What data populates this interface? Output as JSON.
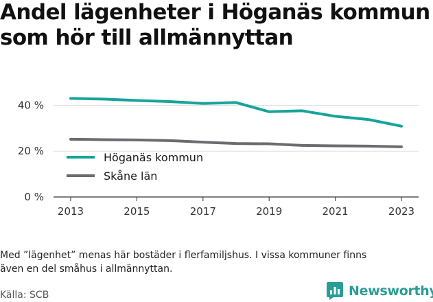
{
  "header": {
    "title_line1": "Andel lägenheter i Höganäs kommun",
    "title_line2": "som hör till allmännyttan"
  },
  "footer": {
    "note_line1": "Med ”lägenhet” menas här bostäder i flerfamiljshus. I vissa kommuner finns",
    "note_line2": "även en del småhus i allmännyttan.",
    "source": "Källa: SCB",
    "brand": "Newsworthy",
    "brand_icon": "bar-chart-speech-bubble-icon"
  },
  "chart_data": {
    "type": "line",
    "title": "Andel lägenheter i Höganäs kommun som hör till allmännyttan",
    "xlabel": "",
    "ylabel": "",
    "x": [
      2013,
      2014,
      2015,
      2016,
      2017,
      2018,
      2019,
      2020,
      2021,
      2022,
      2023
    ],
    "x_ticks": [
      "2013",
      "2015",
      "2017",
      "2019",
      "2021",
      "2023"
    ],
    "y_ticks": [
      "0 %",
      "20 %",
      "40 %"
    ],
    "ylim": [
      0,
      50
    ],
    "grid": true,
    "legend_position": "left, inside plot",
    "series": [
      {
        "name": "Höganäs kommun",
        "color": "#17a39b",
        "values": [
          43.0,
          42.7,
          42.1,
          41.6,
          40.8,
          41.2,
          37.2,
          37.6,
          35.2,
          33.8,
          30.9
        ]
      },
      {
        "name": "Skåne län",
        "color": "#6d6b6f",
        "values": [
          25.2,
          25.0,
          24.9,
          24.6,
          23.9,
          23.3,
          23.2,
          22.5,
          22.3,
          22.2,
          21.9
        ]
      }
    ]
  }
}
